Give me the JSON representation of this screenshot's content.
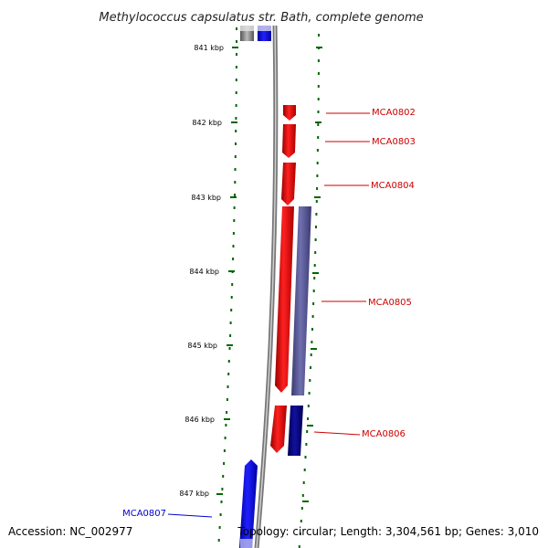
{
  "title": "Methylococcus capsulatus str. Bath, complete genome",
  "ticks": [
    "841 kbp",
    "842 kbp",
    "843 kbp",
    "844 kbp",
    "845 kbp",
    "846 kbp",
    "847 kbp"
  ],
  "genes": [
    {
      "name": "MCA0802",
      "color": "#cc0000"
    },
    {
      "name": "MCA0803",
      "color": "#cc0000"
    },
    {
      "name": "MCA0804",
      "color": "#cc0000"
    },
    {
      "name": "MCA0805",
      "color": "#cc0000"
    },
    {
      "name": "MCA0806",
      "color": "#cc0000"
    },
    {
      "name": "MCA0807",
      "color": "#0000cc"
    }
  ],
  "footer": {
    "accession": "Accession: NC_002977",
    "summary": "Topology: circular; Length: 3,304,561 bp; Genes: 3,010"
  },
  "colors": {
    "forward_gene": "#ff0000",
    "reverse_gene": "#0000ff",
    "other_feature_1": "#55558a",
    "other_feature_2": "#00006e",
    "backbone": "#888888",
    "tick": "#006600"
  }
}
